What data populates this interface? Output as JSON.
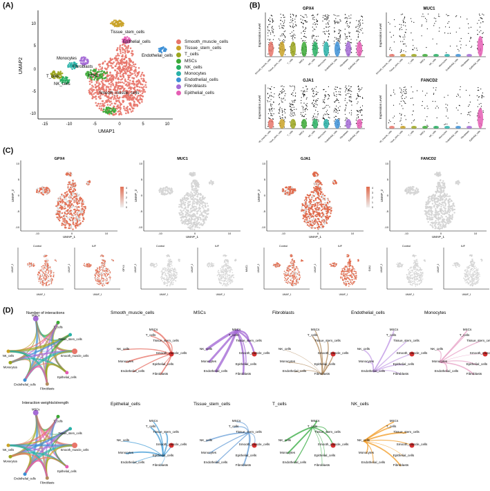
{
  "panels": {
    "a": "(A)",
    "b": "(B)",
    "c": "(C)",
    "d": "(D)"
  },
  "umap": {
    "xlabel": "UMAP1",
    "ylabel": "UMAP2",
    "xticks": [
      "-15",
      "-10",
      "-5",
      "0",
      "5",
      "10"
    ],
    "yticks": [
      "10",
      "5",
      "0",
      "-5",
      "-10"
    ],
    "clusters": [
      {
        "name": "Smooth_muscle_cells",
        "color": "#E8756A",
        "label": "Smooth_muscle_cells"
      },
      {
        "name": "Tissue_stem_cells",
        "color": "#C9A227",
        "label": "Tissue_stem_cells"
      },
      {
        "name": "T_cells",
        "color": "#9BA61C",
        "label": "T_cells"
      },
      {
        "name": "MSCs",
        "color": "#3BA935",
        "label": "MSCs"
      },
      {
        "name": "NK_cells",
        "color": "#27AE60",
        "label": "NK_cells"
      },
      {
        "name": "Monocytes",
        "color": "#29B2A8",
        "label": "Monocytes"
      },
      {
        "name": "Endothelial_cells",
        "color": "#3C8FD6",
        "label": "Endothelial_cells"
      },
      {
        "name": "Fibroblasts",
        "color": "#A56BD6",
        "label": "Fibroblasts"
      },
      {
        "name": "Epithelial_cells",
        "color": "#E55DB4",
        "label": "Epithelial_cells"
      }
    ]
  },
  "violin": {
    "ylabel": "Expression Level",
    "genes": [
      "GPX4",
      "MUC1",
      "GJA1",
      "FANCD2"
    ],
    "xcats": [
      "Smooth_muscle_cells",
      "Tissue_stem_cells",
      "T_cells",
      "MSCs",
      "NK_cells",
      "Monocytes",
      "Endothelial_cells",
      "Fibroblasts",
      "Epithelial_cells"
    ]
  },
  "featureplots": {
    "genes": [
      "GPX4",
      "MUC1",
      "GJA1",
      "FANCD2"
    ],
    "xlabel": "UMAP_1",
    "ylabel": "UMAP_2",
    "xticks": [
      "-10",
      "0",
      "10"
    ],
    "yticks": [
      "10",
      "5",
      "0",
      "-5",
      "-10"
    ],
    "scale_ticks": [
      "4",
      "3",
      "2",
      "1",
      "0"
    ],
    "split_conditions": [
      "Control",
      "IUF"
    ],
    "split_gene_labels": [
      "GPX4",
      "MUC1",
      "GJA1",
      "FANCD2"
    ]
  },
  "network": {
    "overview_titles": [
      "Number of interactions",
      "Interaction weights/strength"
    ],
    "node_labels": [
      "MSCs",
      "T_cells",
      "Tissue_stem_cells",
      "NK_cells",
      "Smooth_muscle_cells",
      "Monocytes",
      "Epithelial_cells",
      "Endothelial_cells",
      "Fibroblasts"
    ],
    "titles": [
      "Smooth_muscle_cells",
      "MSCs",
      "Fibroblasts",
      "Endothelial_cells",
      "Monocytes",
      "Epithelial_cells",
      "Tissue_stem_cells",
      "T_cells",
      "NK_cells"
    ],
    "colors": [
      "#E8756A",
      "#A56BD6",
      "#B38B5C",
      "#C9A6E8",
      "#E8A6C9",
      "#4FA3D9",
      "#6EA3D9",
      "#3FAF4A",
      "#F2A030"
    ]
  }
}
